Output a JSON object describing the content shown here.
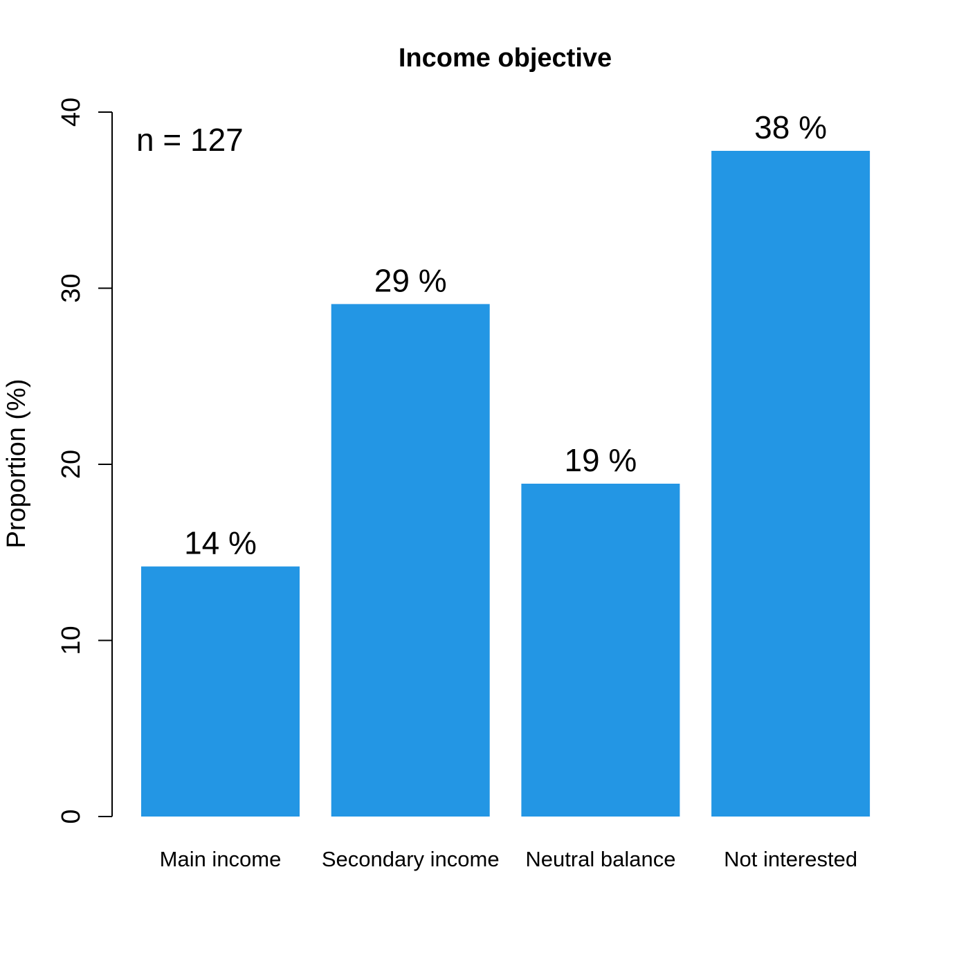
{
  "chart_data": {
    "type": "bar",
    "title": "Income objective",
    "annotation": "n = 127",
    "ylabel": "Proportion (%)",
    "xlabel": "",
    "ylim": [
      0,
      40
    ],
    "yticks": [
      0,
      10,
      20,
      30,
      40
    ],
    "yticks_text": [
      "0",
      "10",
      "20",
      "30",
      "40"
    ],
    "categories": [
      "Main income",
      "Secondary income",
      "Neutral balance",
      "Not interested"
    ],
    "values": [
      14.2,
      29.1,
      18.9,
      37.8
    ],
    "value_labels": [
      "14 %",
      "29 %",
      "19 %",
      "38 %"
    ],
    "bar_color": "#2396E4",
    "grid": false
  }
}
